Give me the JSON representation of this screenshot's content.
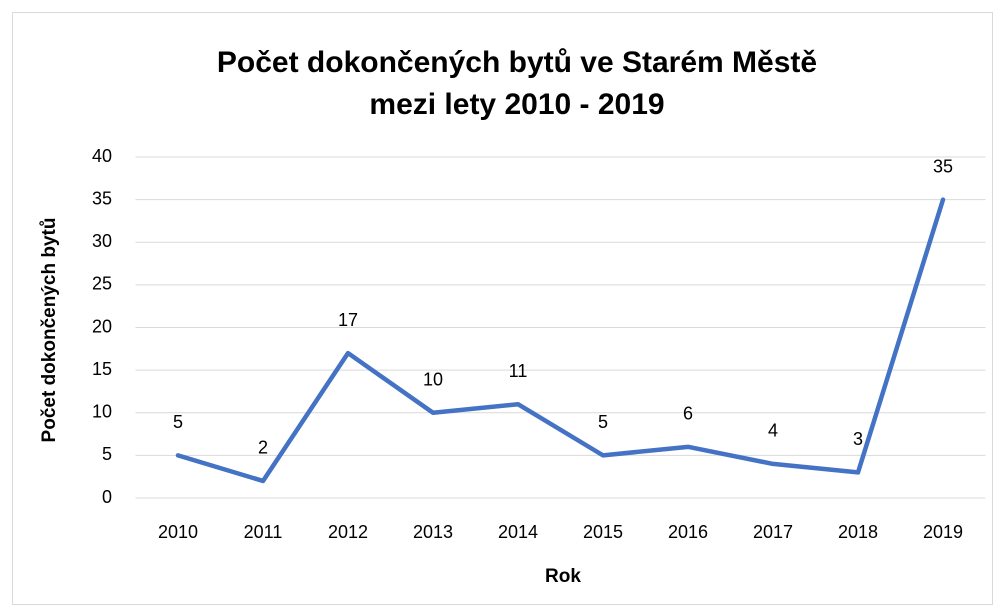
{
  "chart_data": {
    "type": "line",
    "title": [
      "Počet dokončených bytů ve Starém Městě",
      "mezi lety 2010 - 2019"
    ],
    "x_label": "Rok",
    "y_label": "Počet dokončených bytů",
    "categories": [
      "2010",
      "2011",
      "2012",
      "2013",
      "2014",
      "2015",
      "2016",
      "2017",
      "2018",
      "2019"
    ],
    "values": [
      5,
      2,
      17,
      10,
      11,
      5,
      6,
      4,
      3,
      35
    ],
    "color": "#4472c4",
    "ylim": [
      0,
      40
    ],
    "yticks": [
      0,
      5,
      10,
      15,
      20,
      25,
      30,
      35,
      40
    ],
    "grid": true,
    "data_labels": true
  }
}
